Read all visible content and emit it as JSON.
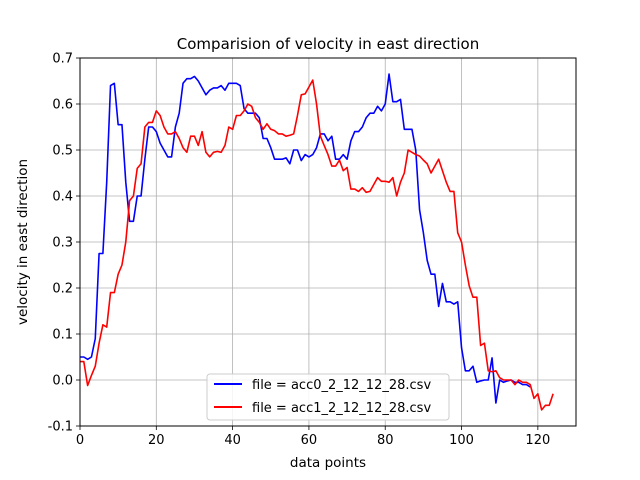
{
  "chart_data": {
    "type": "line",
    "title": "Comparision of velocity in east direction",
    "xlabel": "data points",
    "ylabel": "velocity in east direction",
    "xlim": [
      0,
      130
    ],
    "ylim": [
      -0.1,
      0.7
    ],
    "xticks": [
      0,
      20,
      40,
      60,
      80,
      100,
      120
    ],
    "yticks": [
      -0.1,
      0.0,
      0.1,
      0.2,
      0.3,
      0.4,
      0.5,
      0.6,
      0.7
    ],
    "grid": true,
    "legend_position": "lower-center",
    "series": [
      {
        "name": "file = acc0_2_12_12_28.csv",
        "color": "#0000ff",
        "x": [
          0,
          1,
          2,
          3,
          4,
          5,
          6,
          7,
          8,
          9,
          10,
          11,
          12,
          13,
          14,
          15,
          16,
          17,
          18,
          19,
          20,
          21,
          22,
          23,
          24,
          25,
          26,
          27,
          28,
          29,
          30,
          31,
          32,
          33,
          34,
          35,
          36,
          37,
          38,
          39,
          40,
          41,
          42,
          43,
          44,
          45,
          46,
          47,
          48,
          49,
          50,
          51,
          52,
          53,
          54,
          55,
          56,
          57,
          58,
          59,
          60,
          61,
          62,
          63,
          64,
          65,
          66,
          67,
          68,
          69,
          70,
          71,
          72,
          73,
          74,
          75,
          76,
          77,
          78,
          79,
          80,
          81,
          82,
          83,
          84,
          85,
          86,
          87,
          88,
          89,
          90,
          91,
          92,
          93,
          94,
          95,
          96,
          97,
          98,
          99,
          100,
          101,
          102,
          103,
          104,
          105,
          106,
          107,
          108,
          109,
          110,
          111,
          112,
          113,
          114,
          115,
          116,
          117,
          118
        ],
        "y": [
          0.05,
          0.05,
          0.045,
          0.05,
          0.09,
          0.275,
          0.275,
          0.43,
          0.64,
          0.645,
          0.555,
          0.555,
          0.43,
          0.345,
          0.345,
          0.4,
          0.4,
          0.48,
          0.55,
          0.55,
          0.54,
          0.515,
          0.5,
          0.485,
          0.485,
          0.55,
          0.58,
          0.645,
          0.655,
          0.655,
          0.66,
          0.65,
          0.635,
          0.62,
          0.63,
          0.635,
          0.635,
          0.64,
          0.63,
          0.645,
          0.645,
          0.645,
          0.64,
          0.59,
          0.58,
          0.58,
          0.58,
          0.57,
          0.525,
          0.525,
          0.505,
          0.48,
          0.48,
          0.48,
          0.483,
          0.47,
          0.5,
          0.5,
          0.477,
          0.49,
          0.485,
          0.49,
          0.505,
          0.535,
          0.535,
          0.52,
          0.53,
          0.48,
          0.48,
          0.49,
          0.48,
          0.52,
          0.54,
          0.54,
          0.55,
          0.57,
          0.58,
          0.58,
          0.595,
          0.585,
          0.6,
          0.665,
          0.605,
          0.605,
          0.61,
          0.545,
          0.545,
          0.545,
          0.5,
          0.37,
          0.32,
          0.26,
          0.23,
          0.23,
          0.16,
          0.21,
          0.17,
          0.17,
          0.165,
          0.17,
          0.07,
          0.02,
          0.02,
          0.03,
          -0.005,
          -0.002,
          0.0,
          0.0,
          0.048,
          -0.05,
          0.0,
          -0.005,
          -0.002,
          0.0,
          -0.005,
          -0.005,
          -0.01,
          -0.01,
          -0.015
        ]
      },
      {
        "name": "file = acc1_2_12_12_28.csv",
        "color": "#ff0000",
        "x": [
          0,
          1,
          2,
          3,
          4,
          5,
          6,
          7,
          8,
          9,
          10,
          11,
          12,
          13,
          14,
          15,
          16,
          17,
          18,
          19,
          20,
          21,
          22,
          23,
          24,
          25,
          26,
          27,
          28,
          29,
          30,
          31,
          32,
          33,
          34,
          35,
          36,
          37,
          38,
          39,
          40,
          41,
          42,
          43,
          44,
          45,
          46,
          47,
          48,
          49,
          50,
          51,
          52,
          53,
          54,
          55,
          56,
          57,
          58,
          59,
          60,
          61,
          62,
          63,
          64,
          65,
          66,
          67,
          68,
          69,
          70,
          71,
          72,
          73,
          74,
          75,
          76,
          77,
          78,
          79,
          80,
          81,
          82,
          83,
          84,
          85,
          86,
          87,
          88,
          89,
          90,
          91,
          92,
          93,
          94,
          95,
          96,
          97,
          98,
          99,
          100,
          101,
          102,
          103,
          104,
          105,
          106,
          107,
          108,
          109,
          110,
          111,
          112,
          113,
          114,
          115,
          116,
          117,
          118,
          119,
          120,
          121,
          122,
          123,
          124
        ],
        "y": [
          0.04,
          0.04,
          -0.012,
          0.01,
          0.03,
          0.08,
          0.12,
          0.115,
          0.19,
          0.19,
          0.23,
          0.25,
          0.3,
          0.39,
          0.4,
          0.46,
          0.47,
          0.55,
          0.56,
          0.56,
          0.585,
          0.575,
          0.55,
          0.535,
          0.535,
          0.54,
          0.525,
          0.505,
          0.495,
          0.53,
          0.53,
          0.51,
          0.54,
          0.495,
          0.485,
          0.495,
          0.497,
          0.495,
          0.51,
          0.55,
          0.545,
          0.575,
          0.575,
          0.585,
          0.6,
          0.595,
          0.57,
          0.56,
          0.545,
          0.557,
          0.545,
          0.542,
          0.535,
          0.535,
          0.53,
          0.532,
          0.535,
          0.575,
          0.62,
          0.622,
          0.637,
          0.652,
          0.6,
          0.53,
          0.51,
          0.49,
          0.465,
          0.465,
          0.478,
          0.455,
          0.462,
          0.415,
          0.415,
          0.41,
          0.418,
          0.408,
          0.41,
          0.425,
          0.44,
          0.432,
          0.432,
          0.43,
          0.44,
          0.4,
          0.43,
          0.45,
          0.5,
          0.495,
          0.49,
          0.487,
          0.478,
          0.47,
          0.45,
          0.465,
          0.48,
          0.455,
          0.43,
          0.41,
          0.41,
          0.32,
          0.3,
          0.25,
          0.205,
          0.18,
          0.18,
          0.075,
          0.08,
          0.02,
          0.018,
          0.02,
          0.005,
          0.0,
          0.0,
          0.0,
          -0.01,
          0.0,
          -0.005,
          -0.005,
          -0.01,
          -0.04,
          -0.03,
          -0.065,
          -0.055,
          -0.055,
          -0.03
        ]
      }
    ]
  }
}
